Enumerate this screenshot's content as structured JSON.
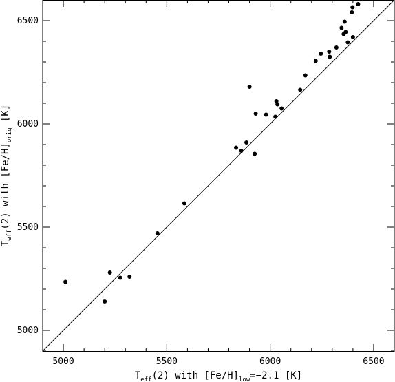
{
  "chart_data": {
    "type": "scatter",
    "xlabel": {
      "main": "T",
      "sub": "eff",
      "rest_before": "(2) with [Fe/H]",
      "sub2": "low",
      "rest_after": "=−2.1 [K]"
    },
    "ylabel": {
      "main": "T",
      "sub": "eff",
      "rest_before": "(2) with [Fe/H]",
      "sub2": "orig",
      "rest_after": " [K]"
    },
    "xlim": [
      4900,
      6600
    ],
    "ylim": [
      4900,
      6600
    ],
    "xticks": [
      5000,
      5500,
      6000,
      6500
    ],
    "yticks": [
      5000,
      5500,
      6000,
      6500
    ],
    "identity_line": true,
    "points": [
      {
        "x": 5010,
        "y": 5235
      },
      {
        "x": 5200,
        "y": 5140
      },
      {
        "x": 5225,
        "y": 5280
      },
      {
        "x": 5275,
        "y": 5255
      },
      {
        "x": 5320,
        "y": 5260
      },
      {
        "x": 5455,
        "y": 5470
      },
      {
        "x": 5585,
        "y": 5615
      },
      {
        "x": 5835,
        "y": 5885
      },
      {
        "x": 5860,
        "y": 5870
      },
      {
        "x": 5885,
        "y": 5910
      },
      {
        "x": 5900,
        "y": 6180
      },
      {
        "x": 5925,
        "y": 5855
      },
      {
        "x": 5930,
        "y": 6050
      },
      {
        "x": 5980,
        "y": 6045
      },
      {
        "x": 6025,
        "y": 6035
      },
      {
        "x": 6030,
        "y": 6110
      },
      {
        "x": 6035,
        "y": 6095
      },
      {
        "x": 6055,
        "y": 6075
      },
      {
        "x": 6145,
        "y": 6165
      },
      {
        "x": 6170,
        "y": 6235
      },
      {
        "x": 6220,
        "y": 6305
      },
      {
        "x": 6245,
        "y": 6340
      },
      {
        "x": 6285,
        "y": 6350
      },
      {
        "x": 6288,
        "y": 6325
      },
      {
        "x": 6320,
        "y": 6370
      },
      {
        "x": 6345,
        "y": 6465
      },
      {
        "x": 6355,
        "y": 6435
      },
      {
        "x": 6360,
        "y": 6495
      },
      {
        "x": 6365,
        "y": 6445
      },
      {
        "x": 6375,
        "y": 6395
      },
      {
        "x": 6395,
        "y": 6540
      },
      {
        "x": 6398,
        "y": 6565
      },
      {
        "x": 6400,
        "y": 6420
      },
      {
        "x": 6425,
        "y": 6580
      }
    ]
  }
}
